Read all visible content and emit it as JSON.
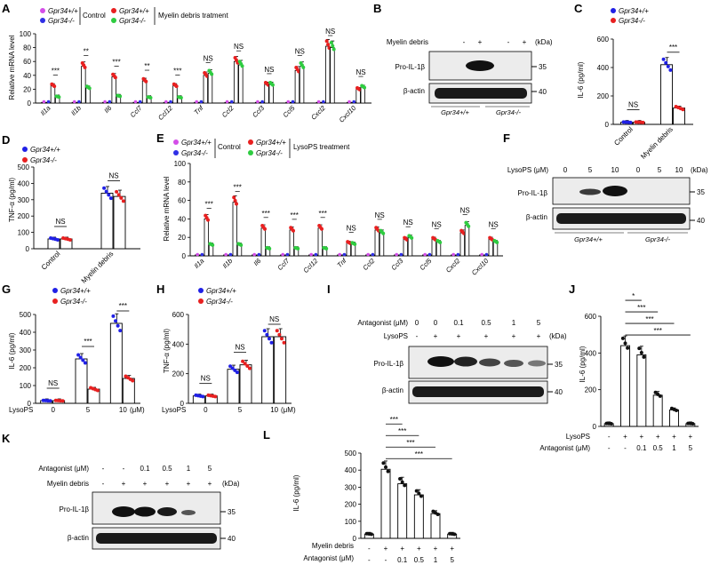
{
  "colors": {
    "wt_control": "#d44ee8",
    "ko_control": "#2f2fe6",
    "wt_treat": "#e82020",
    "ko_treat": "#2ecc40",
    "wt": "#2020e6",
    "ko": "#e82020"
  },
  "sig": {
    "ns": "NS",
    "s1": "*",
    "s2": "**",
    "s3": "***"
  },
  "genotypes": {
    "wt": "Gpr34+/+",
    "ko": "Gpr34-/-"
  },
  "panels": {
    "A": {
      "label": "A",
      "ylabel": "Relative mRNA level",
      "control": "Control",
      "treat": "Myelin debris tratment"
    },
    "B": {
      "label": "B",
      "treatment": "Myelin debris",
      "kda": "(kDa)",
      "protein": "Pro-IL-1β",
      "loading": "β-actin",
      "mw1": "35",
      "mw2": "40",
      "signs": [
        "-",
        "+",
        "-",
        "+"
      ]
    },
    "C": {
      "label": "C",
      "ylabel": "IL-6 (pg/ml)"
    },
    "D": {
      "label": "D",
      "ylabel": "TNF-α (pg/ml)"
    },
    "E": {
      "label": "E",
      "ylabel": "Relative mRNA level",
      "control": "Control",
      "treat": "LysoPS treatment"
    },
    "F": {
      "label": "F",
      "treatment": "LysoPS (μM)",
      "kda": "(kDa)",
      "protein": "Pro-IL-1β",
      "loading": "β-actin",
      "mw1": "35",
      "mw2": "40",
      "doses": [
        "0",
        "5",
        "10",
        "0",
        "5",
        "10"
      ]
    },
    "G": {
      "label": "G",
      "ylabel": "IL-6 (pg/ml)",
      "xlabel": "LysoPS",
      "unit": "(μM)"
    },
    "H": {
      "label": "H",
      "ylabel": "TNF-α (pg/ml)",
      "xlabel": "LysoPS",
      "unit": "(μM)"
    },
    "I": {
      "label": "I",
      "antagonist": "Antagonist (μM)",
      "treatment": "LysoPS",
      "kda": "(kDa)",
      "protein": "Pro-IL-1β",
      "loading": "β-actin",
      "mw1": "35",
      "mw2": "40",
      "ant_values": [
        "0",
        "0",
        "0.1",
        "0.5",
        "1",
        "5"
      ],
      "treat_values": [
        "-",
        "+",
        "+",
        "+",
        "+",
        "+"
      ]
    },
    "J": {
      "label": "J",
      "ylabel": "IL-6 (pg/ml)",
      "row1": "LysoPS",
      "row2": "Antagonist (μM)",
      "row1_values": [
        "-",
        "+",
        "+",
        "+",
        "+",
        "+"
      ],
      "row2_values": [
        "-",
        "-",
        "0.1",
        "0.5",
        "1",
        "5"
      ]
    },
    "K": {
      "label": "K",
      "antagonist": "Antagonist (μM)",
      "treatment": "Myelin debris",
      "kda": "(kDa)",
      "protein": "Pro-IL-1β",
      "loading": "β-actin",
      "mw1": "35",
      "mw2": "40",
      "ant_values": [
        "-",
        "-",
        "0.1",
        "0.5",
        "1",
        "5"
      ],
      "treat_values": [
        "-",
        "+",
        "+",
        "+",
        "+",
        "+"
      ]
    },
    "L": {
      "label": "L",
      "ylabel": "IL-6 (pg/ml)",
      "row1": "Myelin debris",
      "row2": "Antagonist (μM)",
      "row1_values": [
        "-",
        "+",
        "+",
        "+",
        "+",
        "+"
      ],
      "row2_values": [
        "-",
        "-",
        "0.1",
        "0.5",
        "1",
        "5"
      ]
    }
  },
  "chart_data": [
    {
      "id": "A",
      "type": "bar",
      "title": "",
      "ylabel": "Relative mRNA level",
      "ylim": [
        0,
        100
      ],
      "yticks": [
        0,
        20,
        40,
        60,
        80,
        100
      ],
      "categories": [
        "Il1a",
        "Il1b",
        "Il6",
        "Ccl7",
        "Ccl12",
        "Tnf",
        "Ccl2",
        "Ccl3",
        "Ccl5",
        "Cxcl2",
        "Cxcl10"
      ],
      "series": [
        {
          "name": "Gpr34+/+ Control",
          "color": "#d44ee8",
          "values": [
            1,
            1,
            1,
            1,
            1,
            1,
            1,
            1,
            1,
            1,
            1
          ]
        },
        {
          "name": "Gpr34-/- Control",
          "color": "#2f2fe6",
          "values": [
            1,
            1,
            1,
            1,
            1,
            1,
            1,
            1,
            1,
            1,
            1
          ]
        },
        {
          "name": "Gpr34+/+ Myelin debris",
          "color": "#e82020",
          "values": [
            25,
            53,
            38,
            32,
            25,
            40,
            60,
            27,
            47,
            82,
            20
          ]
        },
        {
          "name": "Gpr34-/- Myelin debris",
          "color": "#2ecc40",
          "values": [
            9,
            22,
            10,
            8,
            8,
            43,
            55,
            27,
            53,
            80,
            23
          ]
        }
      ],
      "significance": [
        "***",
        "**",
        "***",
        "**",
        "***",
        "NS",
        "NS",
        "NS",
        "NS",
        "NS",
        "NS"
      ]
    },
    {
      "id": "C",
      "type": "bar",
      "title": "",
      "ylabel": "IL-6 (pg/ml)",
      "ylim": [
        0,
        600
      ],
      "yticks": [
        0,
        200,
        400,
        600
      ],
      "categories": [
        "Control",
        "Myelin debris"
      ],
      "series": [
        {
          "name": "Gpr34+/+",
          "color": "#2020e6",
          "values": [
            15,
            420
          ]
        },
        {
          "name": "Gpr34-/-",
          "color": "#e82020",
          "values": [
            15,
            115
          ]
        }
      ],
      "significance": [
        "NS",
        "***"
      ]
    },
    {
      "id": "D",
      "type": "bar",
      "title": "",
      "ylabel": "TNF-α (pg/ml)",
      "ylim": [
        0,
        500
      ],
      "yticks": [
        0,
        100,
        200,
        300,
        400,
        500
      ],
      "categories": [
        "Control",
        "Myelin debris"
      ],
      "series": [
        {
          "name": "Gpr34+/+",
          "color": "#2020e6",
          "values": [
            60,
            340
          ]
        },
        {
          "name": "Gpr34-/-",
          "color": "#e82020",
          "values": [
            60,
            320
          ]
        }
      ],
      "significance": [
        "NS",
        "NS"
      ]
    },
    {
      "id": "E",
      "type": "bar",
      "title": "",
      "ylabel": "Relative mRNA level",
      "ylim": [
        0,
        100
      ],
      "yticks": [
        0,
        20,
        40,
        60,
        80,
        100
      ],
      "categories": [
        "Il1a",
        "Il1b",
        "Il6",
        "Ccl7",
        "Ccl12",
        "Tnf",
        "Ccl2",
        "Ccl3",
        "Ccl5",
        "Cxcl2",
        "Cxcl10"
      ],
      "series": [
        {
          "name": "Gpr34+/+ Control",
          "color": "#d44ee8",
          "values": [
            1,
            1,
            1,
            1,
            1,
            1,
            1,
            1,
            1,
            1,
            1
          ]
        },
        {
          "name": "Gpr34-/- Control",
          "color": "#2f2fe6",
          "values": [
            1,
            1,
            1,
            1,
            1,
            1,
            1,
            1,
            1,
            1,
            1
          ]
        },
        {
          "name": "Gpr34+/+ LysoPS",
          "color": "#e82020",
          "values": [
            40,
            58,
            30,
            28,
            30,
            14,
            28,
            18,
            18,
            25,
            18
          ]
        },
        {
          "name": "Gpr34-/- LysoPS",
          "color": "#2ecc40",
          "values": [
            12,
            12,
            8,
            8,
            8,
            13,
            25,
            20,
            15,
            33,
            15
          ]
        }
      ],
      "significance": [
        "***",
        "***",
        "***",
        "***",
        "***",
        "NS",
        "NS",
        "NS",
        "NS",
        "NS",
        "NS"
      ]
    },
    {
      "id": "G",
      "type": "bar",
      "title": "",
      "ylabel": "IL-6 (pg/ml)",
      "ylim": [
        0,
        500
      ],
      "yticks": [
        0,
        100,
        200,
        300,
        400,
        500
      ],
      "categories": [
        "0",
        "5",
        "10"
      ],
      "series": [
        {
          "name": "Gpr34+/+",
          "color": "#2020e6",
          "values": [
            15,
            250,
            450
          ]
        },
        {
          "name": "Gpr34-/-",
          "color": "#e82020",
          "values": [
            15,
            80,
            140
          ]
        }
      ],
      "significance": [
        "NS",
        "***",
        "***"
      ]
    },
    {
      "id": "H",
      "type": "bar",
      "title": "",
      "ylabel": "TNF-α (pg/ml)",
      "ylim": [
        0,
        600
      ],
      "yticks": [
        0,
        200,
        400,
        600
      ],
      "categories": [
        "0",
        "5",
        "10"
      ],
      "series": [
        {
          "name": "Gpr34+/+",
          "color": "#2020e6",
          "values": [
            50,
            230,
            450
          ]
        },
        {
          "name": "Gpr34-/-",
          "color": "#e82020",
          "values": [
            50,
            260,
            450
          ]
        }
      ],
      "significance": [
        "NS",
        "NS",
        "NS"
      ]
    },
    {
      "id": "J",
      "type": "bar",
      "title": "",
      "ylabel": "IL-6 (pg/ml)",
      "ylim": [
        0,
        600
      ],
      "yticks": [
        0,
        200,
        400,
        600
      ],
      "categories": [
        "-/-",
        "+/-",
        "+/0.1",
        "+/0.5",
        "+/1",
        "+/5"
      ],
      "values": [
        15,
        440,
        390,
        170,
        90,
        15
      ],
      "comparisons": [
        {
          "from": 1,
          "to": 2,
          "label": "*"
        },
        {
          "from": 1,
          "to": 3,
          "label": "***"
        },
        {
          "from": 1,
          "to": 4,
          "label": "***"
        },
        {
          "from": 1,
          "to": 5,
          "label": "***"
        }
      ]
    },
    {
      "id": "L",
      "type": "bar",
      "title": "",
      "ylabel": "IL-6 (pg/ml)",
      "ylim": [
        0,
        500
      ],
      "yticks": [
        0,
        100,
        200,
        300,
        400,
        500
      ],
      "categories": [
        "-/-",
        "+/-",
        "+/0.1",
        "+/0.5",
        "+/1",
        "+/5"
      ],
      "values": [
        25,
        405,
        320,
        255,
        145,
        25
      ],
      "comparisons": [
        {
          "from": 1,
          "to": 2,
          "label": "***"
        },
        {
          "from": 1,
          "to": 3,
          "label": "***"
        },
        {
          "from": 1,
          "to": 4,
          "label": "***"
        },
        {
          "from": 1,
          "to": 5,
          "label": "***"
        }
      ]
    }
  ]
}
